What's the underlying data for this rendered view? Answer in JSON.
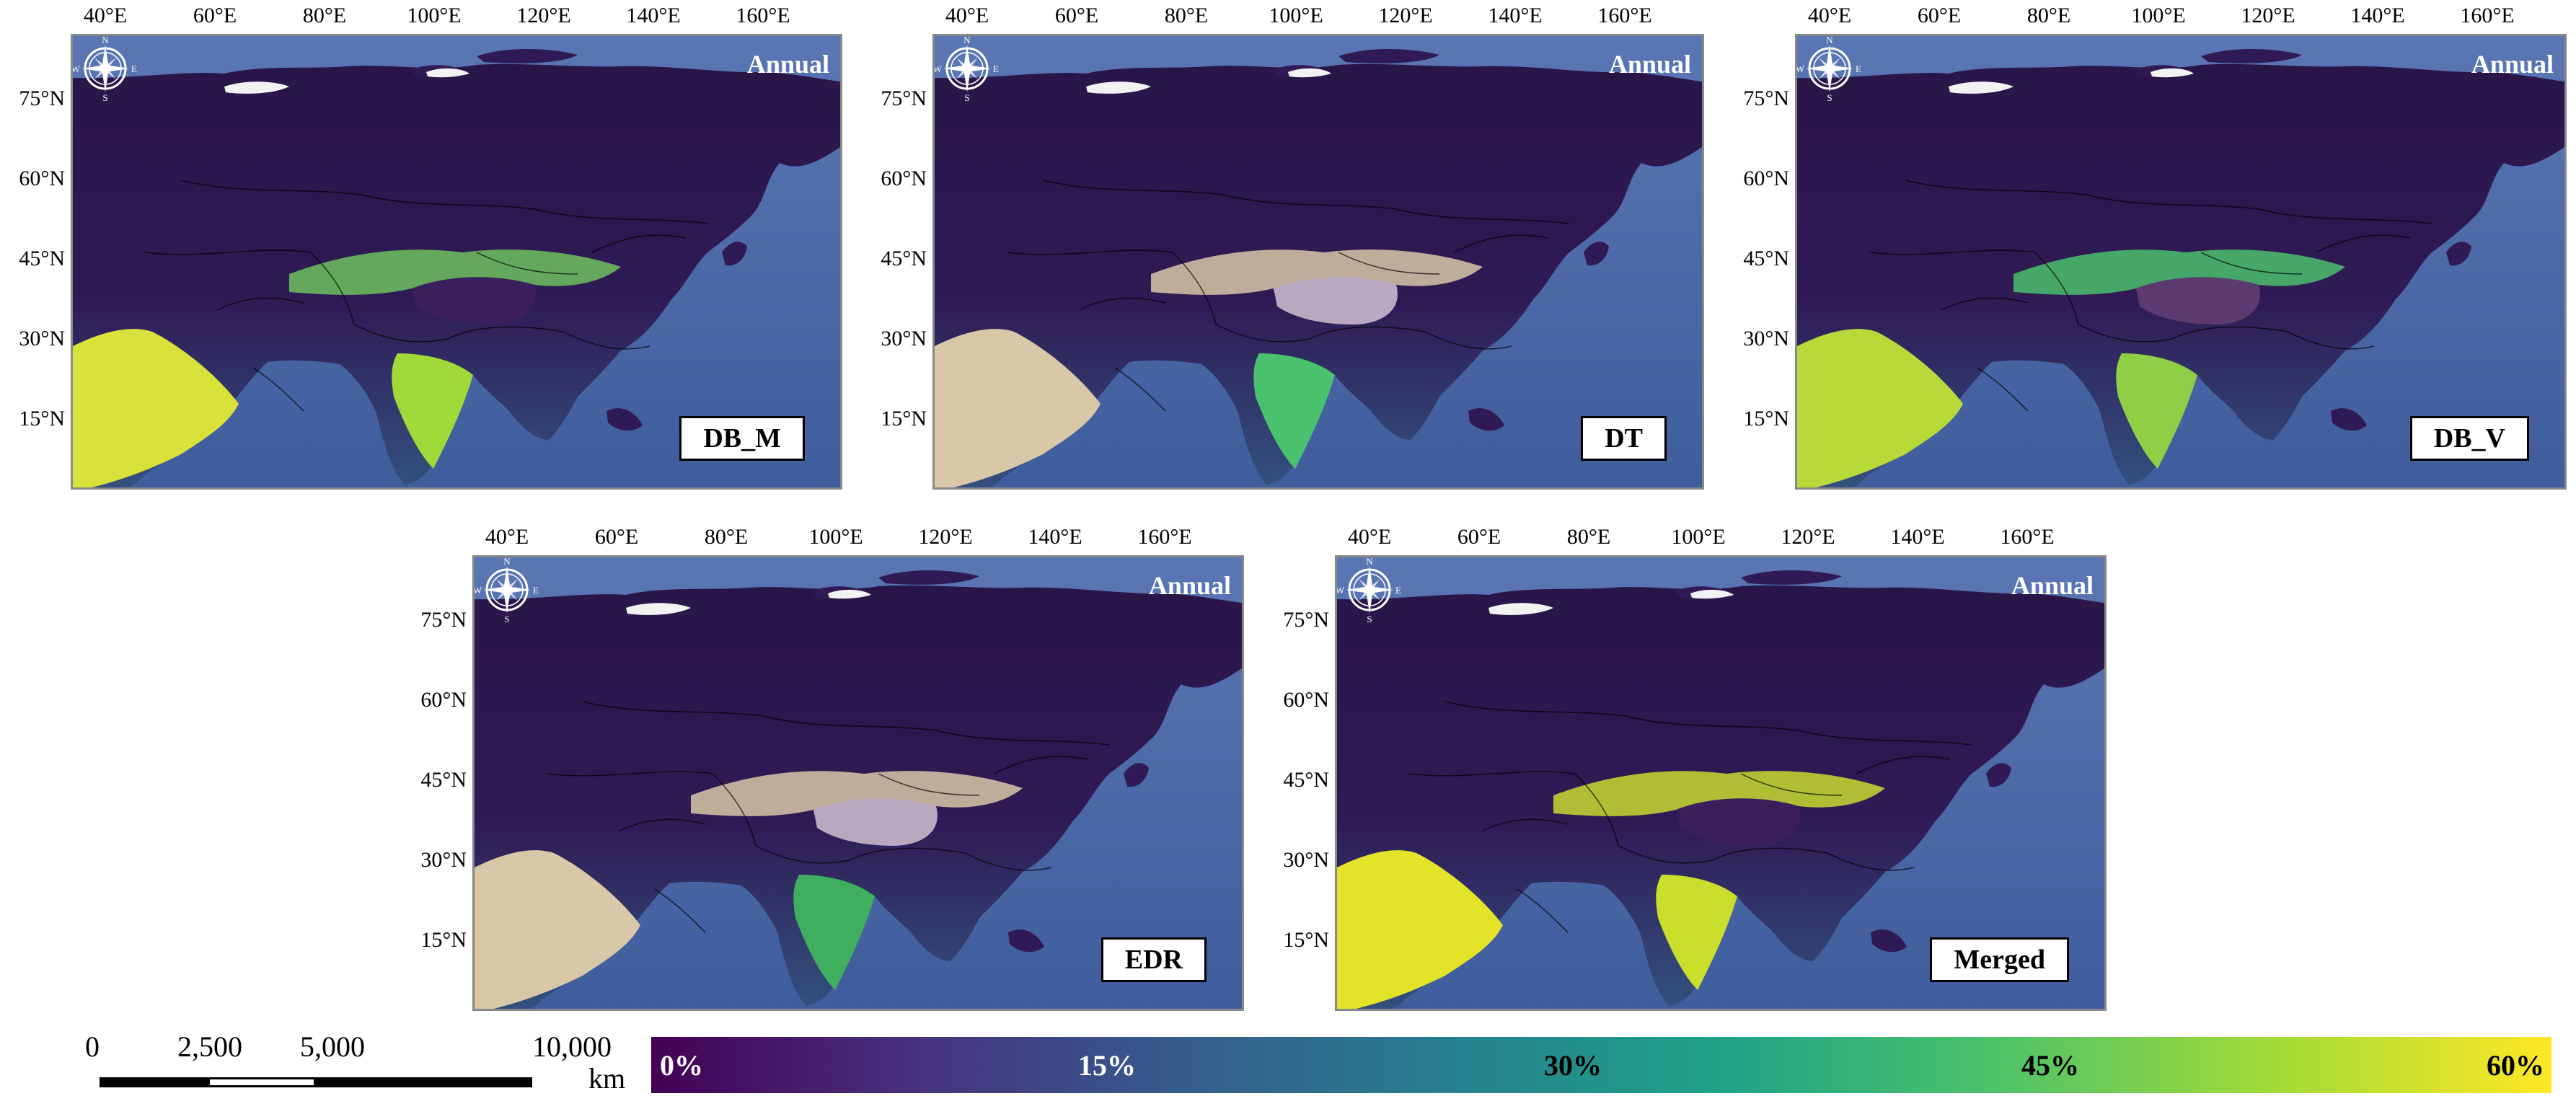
{
  "x_ticks": [
    "40°E",
    "60°E",
    "80°E",
    "100°E",
    "120°E",
    "140°E",
    "160°E"
  ],
  "y_ticks": [
    "75°N",
    "60°N",
    "45°N",
    "30°N",
    "15°N"
  ],
  "compass": {
    "n": "N",
    "s": "S",
    "e": "E",
    "w": "W"
  },
  "panels": [
    {
      "season": "Annual",
      "product": "DB_M"
    },
    {
      "season": "Annual",
      "product": "DT"
    },
    {
      "season": "Annual",
      "product": "DB_V"
    },
    {
      "season": "Annual",
      "product": "EDR"
    },
    {
      "season": "Annual",
      "product": "Merged"
    }
  ],
  "scale_bar": {
    "labels": [
      "0",
      "2,500",
      "5,000",
      "10,000"
    ],
    "values": [
      0,
      2500,
      5000,
      10000
    ],
    "unit": "km"
  },
  "legend": {
    "labels": [
      "0%",
      "15%",
      "30%",
      "45%",
      "60%"
    ],
    "label_colors": [
      "#ffffff",
      "#ffffff",
      "#000000",
      "#000000",
      "#000000"
    ],
    "colormap": [
      "#440154",
      "#46327e",
      "#365c8d",
      "#277f8e",
      "#1fa187",
      "#4ac16d",
      "#a0da39",
      "#fde725"
    ],
    "min": 0,
    "max": 60
  },
  "colors": {
    "ocean": "#4b67a8",
    "low_value_land": "#3a1f5c",
    "missing_data": "#d8c8a8",
    "frame": "#888888"
  }
}
